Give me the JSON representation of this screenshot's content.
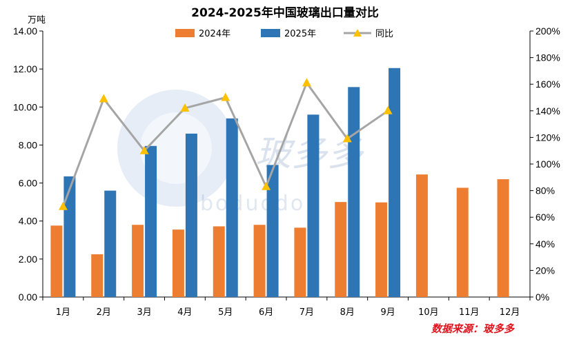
{
  "chart_data": {
    "type": "bar",
    "title": "2024-2025年中国玻璃出口量对比",
    "y_unit_label": "万吨",
    "categories": [
      "1月",
      "2月",
      "3月",
      "4月",
      "5月",
      "6月",
      "7月",
      "8月",
      "9月",
      "10月",
      "11月",
      "12月"
    ],
    "series": [
      {
        "name": "2024年",
        "type": "bar",
        "color": "#ed7d31",
        "axis": "left",
        "values": [
          3.76,
          2.25,
          3.8,
          3.55,
          3.72,
          3.8,
          3.65,
          5.0,
          4.98,
          6.45,
          5.75,
          6.2
        ]
      },
      {
        "name": "2025年",
        "type": "bar",
        "color": "#2e75b6",
        "axis": "left",
        "values": [
          6.35,
          5.6,
          7.95,
          8.6,
          9.4,
          6.95,
          9.6,
          11.05,
          12.05,
          null,
          null,
          null
        ]
      },
      {
        "name": "同比",
        "type": "line",
        "color": "#a5a5a5",
        "marker_color": "#ffc000",
        "axis": "right",
        "values": [
          68,
          149,
          110,
          142,
          150,
          83,
          161,
          119,
          140,
          null,
          null,
          null
        ]
      }
    ],
    "ylim": [
      0,
      14
    ],
    "yticks": [
      "0.00",
      "2.00",
      "4.00",
      "6.00",
      "8.00",
      "10.00",
      "12.00",
      "14.00"
    ],
    "y2lim": [
      0,
      200
    ],
    "y2ticks": [
      "0%",
      "20%",
      "40%",
      "60%",
      "80%",
      "100%",
      "120%",
      "140%",
      "160%",
      "180%",
      "200%"
    ],
    "legend_position": "top",
    "grid": false
  },
  "watermark": {
    "text": "玻多多",
    "sub": "boduodo"
  },
  "source": "数据来源：玻多多"
}
